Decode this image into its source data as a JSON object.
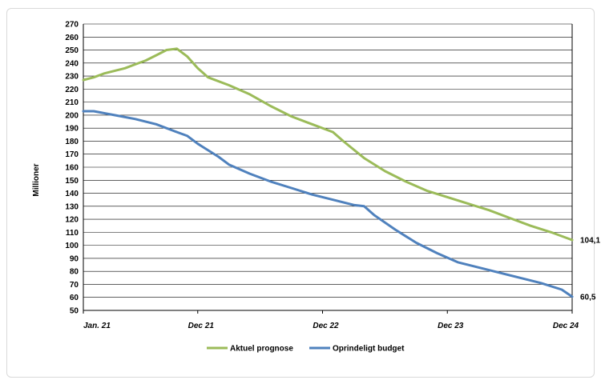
{
  "chart_data": {
    "type": "line",
    "title": "",
    "xlabel": "",
    "ylabel": "Millioner",
    "ylim": [
      50,
      270
    ],
    "ytick_step": 10,
    "grid": true,
    "legend_position": "bottom",
    "x_categories": [
      "Jan. 21",
      "Dec 21",
      "Dec 22",
      "Dec 23",
      "Dec 24"
    ],
    "x_months_total": 47,
    "x_tick_month_index": [
      0,
      11,
      23,
      35,
      47
    ],
    "series": [
      {
        "name": "Aktuel prognose",
        "color": "#9bbb59",
        "end_label": "104,1",
        "points": [
          [
            0,
            227
          ],
          [
            1,
            229
          ],
          [
            2,
            232
          ],
          [
            3,
            234
          ],
          [
            4,
            236
          ],
          [
            5,
            239
          ],
          [
            6,
            242
          ],
          [
            7,
            246
          ],
          [
            8,
            250
          ],
          [
            9,
            251
          ],
          [
            10,
            245
          ],
          [
            11,
            236
          ],
          [
            12,
            229
          ],
          [
            14,
            223
          ],
          [
            16,
            216
          ],
          [
            18,
            207
          ],
          [
            20,
            199
          ],
          [
            22,
            193
          ],
          [
            24,
            187
          ],
          [
            25,
            180
          ],
          [
            27,
            167
          ],
          [
            29,
            157
          ],
          [
            31,
            149
          ],
          [
            33,
            142
          ],
          [
            35,
            137
          ],
          [
            37,
            132
          ],
          [
            39,
            127
          ],
          [
            41,
            121
          ],
          [
            43,
            115
          ],
          [
            45,
            110
          ],
          [
            47,
            104.1
          ]
        ]
      },
      {
        "name": "Oprindeligt budget",
        "color": "#4f81bd",
        "end_label": "60,5",
        "points": [
          [
            0,
            203
          ],
          [
            1,
            203
          ],
          [
            3,
            200
          ],
          [
            5,
            197
          ],
          [
            7,
            193
          ],
          [
            9,
            187
          ],
          [
            10,
            184
          ],
          [
            11,
            178
          ],
          [
            13,
            168
          ],
          [
            14,
            162
          ],
          [
            16,
            155
          ],
          [
            18,
            149
          ],
          [
            20,
            144
          ],
          [
            22,
            139
          ],
          [
            24,
            135
          ],
          [
            26,
            131
          ],
          [
            27,
            130
          ],
          [
            28,
            123
          ],
          [
            30,
            112
          ],
          [
            32,
            102
          ],
          [
            34,
            94
          ],
          [
            36,
            87
          ],
          [
            38,
            83
          ],
          [
            40,
            79
          ],
          [
            42,
            75
          ],
          [
            44,
            71
          ],
          [
            46,
            66
          ],
          [
            47,
            60.5
          ]
        ]
      }
    ]
  }
}
